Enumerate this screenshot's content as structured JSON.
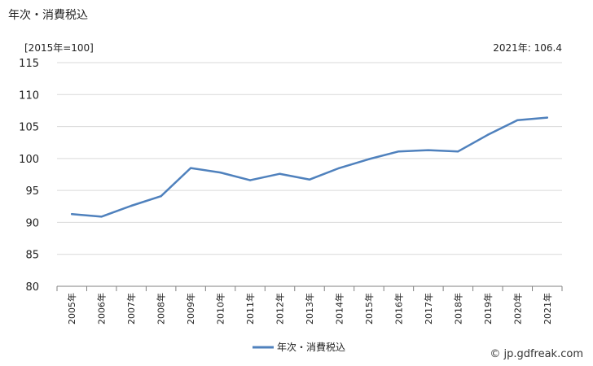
{
  "title": "年次・消費税込",
  "unit_label": "[2015年=100]",
  "latest_label": "2021年: 106.4",
  "credit": "© jp.gdfreak.com",
  "colors": {
    "line": "#4f81bd",
    "grid": "#d9d9d9",
    "axis": "#808080"
  },
  "chart_data": {
    "type": "line",
    "categories": [
      "2005年",
      "2006年",
      "2007年",
      "2008年",
      "2009年",
      "2010年",
      "2011年",
      "2012年",
      "2013年",
      "2014年",
      "2015年",
      "2016年",
      "2017年",
      "2018年",
      "2019年",
      "2020年",
      "2021年"
    ],
    "series": [
      {
        "name": "年次・消費税込",
        "values": [
          91.3,
          90.9,
          92.6,
          94.1,
          98.5,
          97.8,
          96.6,
          97.6,
          96.7,
          98.5,
          99.9,
          101.1,
          101.3,
          101.1,
          103.7,
          106.0,
          106.4
        ]
      }
    ],
    "yticks": [
      80,
      85,
      90,
      95,
      100,
      105,
      110,
      115
    ],
    "ylim": [
      80,
      115
    ],
    "grid": true,
    "legend": "bottom-center"
  }
}
